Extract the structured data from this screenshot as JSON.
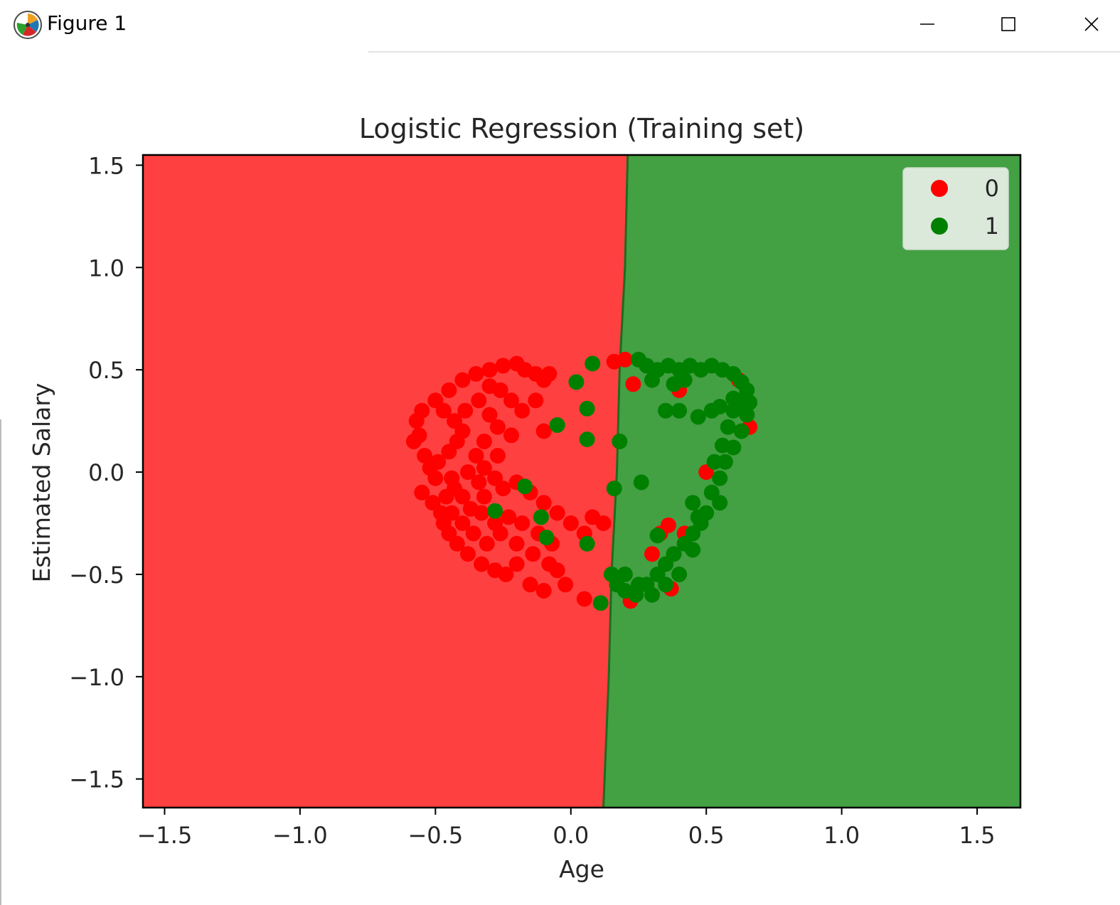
{
  "window": {
    "title": "Figure 1",
    "icon": "matplotlib-figure-icon",
    "controls": [
      "minimize-icon",
      "maximize-icon",
      "close-icon"
    ]
  },
  "colors": {
    "region_0": "#ff4040",
    "region_1": "#43a043",
    "points_0": "#ff0000",
    "points_1": "#008000"
  },
  "chart_data": {
    "type": "scatter",
    "title": "Logistic Regression (Training set)",
    "xlabel": "Age",
    "ylabel": "Estimated Salary",
    "xlim": [
      -1.58,
      1.66
    ],
    "ylim": [
      -1.64,
      1.55
    ],
    "xticks": [
      -1.5,
      -1.0,
      -0.5,
      0.0,
      0.5,
      1.0,
      1.5
    ],
    "yticks": [
      -1.5,
      -1.0,
      -0.5,
      0.0,
      0.5,
      1.0,
      1.5
    ],
    "tick_labels_x": [
      "−1.5",
      "−1.0",
      "−0.5",
      "0.0",
      "0.5",
      "1.0",
      "1.5"
    ],
    "tick_labels_y": [
      "−1.5",
      "−1.0",
      "−0.5",
      "0.0",
      "0.5",
      "1.0",
      "1.5"
    ],
    "grid": false,
    "legend_position": "top-right",
    "decision_boundary": [
      [
        0.21,
        1.55
      ],
      [
        0.2,
        1.0
      ],
      [
        0.18,
        0.5
      ],
      [
        0.17,
        0.0
      ],
      [
        0.15,
        -0.5
      ],
      [
        0.14,
        -1.0
      ],
      [
        0.12,
        -1.64
      ]
    ],
    "regions": [
      {
        "label": "0",
        "side": "left"
      },
      {
        "label": "1",
        "side": "right"
      }
    ],
    "series": [
      {
        "name": "0",
        "points": [
          [
            -0.57,
            0.25
          ],
          [
            -0.55,
            0.3
          ],
          [
            -0.56,
            0.18
          ],
          [
            -0.58,
            0.15
          ],
          [
            -0.54,
            0.08
          ],
          [
            -0.52,
            0.02
          ],
          [
            -0.5,
            -0.03
          ],
          [
            -0.55,
            -0.1
          ],
          [
            -0.51,
            -0.15
          ],
          [
            -0.48,
            -0.2
          ],
          [
            -0.47,
            -0.25
          ],
          [
            -0.45,
            -0.3
          ],
          [
            -0.42,
            -0.35
          ],
          [
            -0.38,
            -0.4
          ],
          [
            -0.33,
            -0.45
          ],
          [
            -0.28,
            -0.48
          ],
          [
            -0.24,
            -0.5
          ],
          [
            -0.2,
            -0.45
          ],
          [
            -0.15,
            -0.55
          ],
          [
            -0.1,
            -0.58
          ],
          [
            -0.05,
            -0.48
          ],
          [
            -0.07,
            -0.35
          ],
          [
            -0.12,
            -0.3
          ],
          [
            -0.18,
            -0.25
          ],
          [
            -0.23,
            -0.22
          ],
          [
            -0.28,
            -0.25
          ],
          [
            -0.33,
            -0.2
          ],
          [
            -0.37,
            -0.18
          ],
          [
            -0.4,
            -0.12
          ],
          [
            -0.43,
            -0.08
          ],
          [
            -0.46,
            -0.12
          ],
          [
            -0.49,
            0.05
          ],
          [
            -0.45,
            0.1
          ],
          [
            -0.42,
            0.15
          ],
          [
            -0.4,
            0.2
          ],
          [
            -0.43,
            0.25
          ],
          [
            -0.47,
            0.3
          ],
          [
            -0.5,
            0.35
          ],
          [
            -0.45,
            0.4
          ],
          [
            -0.4,
            0.45
          ],
          [
            -0.35,
            0.48
          ],
          [
            -0.3,
            0.5
          ],
          [
            -0.25,
            0.52
          ],
          [
            -0.2,
            0.53
          ],
          [
            -0.17,
            0.5
          ],
          [
            -0.13,
            0.48
          ],
          [
            -0.1,
            0.45
          ],
          [
            -0.13,
            0.35
          ],
          [
            -0.18,
            0.3
          ],
          [
            -0.22,
            0.35
          ],
          [
            -0.26,
            0.4
          ],
          [
            -0.3,
            0.42
          ],
          [
            -0.34,
            0.35
          ],
          [
            -0.3,
            0.28
          ],
          [
            -0.27,
            0.22
          ],
          [
            -0.32,
            0.15
          ],
          [
            -0.35,
            0.08
          ],
          [
            -0.32,
            0.02
          ],
          [
            -0.28,
            -0.03
          ],
          [
            -0.25,
            -0.08
          ],
          [
            -0.2,
            -0.05
          ],
          [
            -0.15,
            -0.1
          ],
          [
            -0.1,
            -0.15
          ],
          [
            -0.05,
            -0.2
          ],
          [
            0.0,
            -0.25
          ],
          [
            0.05,
            -0.3
          ],
          [
            0.08,
            -0.22
          ],
          [
            0.12,
            -0.25
          ],
          [
            0.05,
            -0.62
          ],
          [
            -0.02,
            -0.55
          ],
          [
            -0.08,
            -0.45
          ],
          [
            -0.14,
            -0.4
          ],
          [
            -0.2,
            -0.35
          ],
          [
            -0.26,
            -0.3
          ],
          [
            -0.31,
            -0.35
          ],
          [
            -0.36,
            -0.3
          ],
          [
            -0.4,
            -0.25
          ],
          [
            -0.44,
            -0.2
          ],
          [
            -0.38,
            0.0
          ],
          [
            -0.34,
            -0.05
          ],
          [
            -0.1,
            0.2
          ],
          [
            -0.08,
            0.48
          ],
          [
            0.16,
            0.54
          ],
          [
            0.2,
            0.55
          ],
          [
            0.23,
            0.43
          ],
          [
            0.4,
            0.4
          ],
          [
            0.5,
            0.0
          ],
          [
            0.33,
            -0.3
          ],
          [
            0.36,
            -0.26
          ],
          [
            0.3,
            -0.4
          ],
          [
            0.37,
            -0.57
          ],
          [
            0.22,
            -0.63
          ],
          [
            0.42,
            -0.3
          ],
          [
            0.66,
            0.22
          ],
          [
            0.62,
            0.45
          ],
          [
            -0.22,
            0.18
          ],
          [
            -0.39,
            0.3
          ],
          [
            -0.44,
            -0.03
          ],
          [
            -0.27,
            0.08
          ],
          [
            -0.32,
            -0.12
          ]
        ]
      },
      {
        "name": "1",
        "points": [
          [
            0.25,
            0.55
          ],
          [
            0.28,
            0.52
          ],
          [
            0.32,
            0.5
          ],
          [
            0.36,
            0.52
          ],
          [
            0.4,
            0.5
          ],
          [
            0.44,
            0.52
          ],
          [
            0.48,
            0.5
          ],
          [
            0.52,
            0.52
          ],
          [
            0.56,
            0.5
          ],
          [
            0.6,
            0.48
          ],
          [
            0.63,
            0.44
          ],
          [
            0.65,
            0.4
          ],
          [
            0.66,
            0.34
          ],
          [
            0.65,
            0.28
          ],
          [
            0.63,
            0.2
          ],
          [
            0.6,
            0.12
          ],
          [
            0.57,
            0.05
          ],
          [
            0.55,
            -0.03
          ],
          [
            0.52,
            -0.1
          ],
          [
            0.55,
            -0.15
          ],
          [
            0.5,
            -0.2
          ],
          [
            0.48,
            -0.25
          ],
          [
            0.45,
            -0.3
          ],
          [
            0.42,
            -0.35
          ],
          [
            0.38,
            -0.4
          ],
          [
            0.35,
            -0.45
          ],
          [
            0.32,
            -0.5
          ],
          [
            0.28,
            -0.55
          ],
          [
            0.24,
            -0.6
          ],
          [
            0.2,
            -0.58
          ],
          [
            0.17,
            -0.55
          ],
          [
            0.15,
            -0.5
          ],
          [
            0.2,
            -0.5
          ],
          [
            0.25,
            -0.55
          ],
          [
            0.3,
            -0.6
          ],
          [
            0.35,
            -0.55
          ],
          [
            0.4,
            -0.5
          ],
          [
            0.45,
            -0.38
          ],
          [
            0.47,
            -0.22
          ],
          [
            0.45,
            -0.15
          ],
          [
            0.52,
            0.3
          ],
          [
            0.47,
            0.27
          ],
          [
            0.4,
            0.3
          ],
          [
            0.35,
            0.3
          ],
          [
            0.3,
            0.45
          ],
          [
            0.38,
            0.43
          ],
          [
            0.42,
            0.45
          ],
          [
            0.6,
            0.3
          ],
          [
            0.62,
            0.35
          ],
          [
            0.55,
            0.32
          ],
          [
            0.18,
            0.15
          ],
          [
            0.16,
            -0.08
          ],
          [
            0.26,
            -0.05
          ],
          [
            0.06,
            0.16
          ],
          [
            0.06,
            0.31
          ],
          [
            0.02,
            0.44
          ],
          [
            0.08,
            0.53
          ],
          [
            -0.05,
            0.23
          ],
          [
            -0.17,
            -0.07
          ],
          [
            -0.28,
            -0.19
          ],
          [
            -0.11,
            -0.22
          ],
          [
            -0.09,
            -0.32
          ],
          [
            0.06,
            -0.35
          ],
          [
            0.11,
            -0.64
          ],
          [
            0.32,
            -0.31
          ],
          [
            0.53,
            0.05
          ],
          [
            0.56,
            0.13
          ],
          [
            0.58,
            0.22
          ],
          [
            0.64,
            0.32
          ],
          [
            0.6,
            0.36
          ]
        ]
      }
    ]
  }
}
